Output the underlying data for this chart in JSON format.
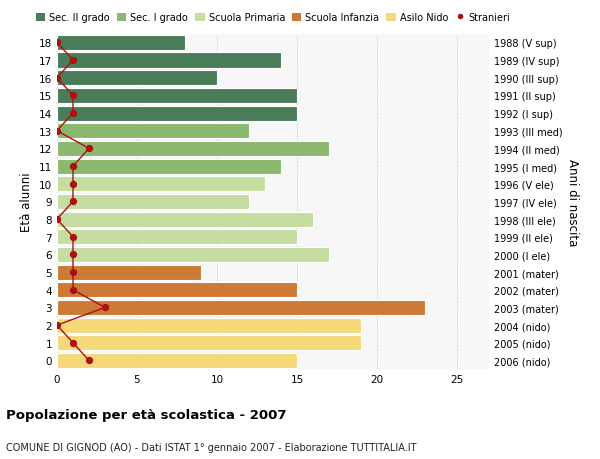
{
  "ages": [
    18,
    17,
    16,
    15,
    14,
    13,
    12,
    11,
    10,
    9,
    8,
    7,
    6,
    5,
    4,
    3,
    2,
    1,
    0
  ],
  "right_labels": [
    "1988 (V sup)",
    "1989 (IV sup)",
    "1990 (III sup)",
    "1991 (II sup)",
    "1992 (I sup)",
    "1993 (III med)",
    "1994 (II med)",
    "1995 (I med)",
    "1996 (V ele)",
    "1997 (IV ele)",
    "1998 (III ele)",
    "1999 (II ele)",
    "2000 (I ele)",
    "2001 (mater)",
    "2002 (mater)",
    "2003 (mater)",
    "2004 (nido)",
    "2005 (nido)",
    "2006 (nido)"
  ],
  "bar_values": [
    8,
    14,
    10,
    15,
    15,
    12,
    17,
    14,
    13,
    12,
    16,
    15,
    17,
    9,
    15,
    23,
    19,
    19,
    15
  ],
  "bar_colors": [
    "#4a7c59",
    "#4a7c59",
    "#4a7c59",
    "#4a7c59",
    "#4a7c59",
    "#8ab86e",
    "#8ab86e",
    "#8ab86e",
    "#c5dda0",
    "#c5dda0",
    "#c5dda0",
    "#c5dda0",
    "#c5dda0",
    "#cc7a35",
    "#cc7a35",
    "#cc7a35",
    "#f5d87a",
    "#f5d87a",
    "#f5d87a"
  ],
  "stranieri_values": [
    0,
    1,
    0,
    1,
    1,
    0,
    2,
    1,
    1,
    1,
    0,
    1,
    1,
    1,
    1,
    3,
    0,
    1,
    2
  ],
  "legend_labels": [
    "Sec. II grado",
    "Sec. I grado",
    "Scuola Primaria",
    "Scuola Infanzia",
    "Asilo Nido",
    "Stranieri"
  ],
  "legend_colors": [
    "#4a7c59",
    "#8ab86e",
    "#c5dda0",
    "#cc7a35",
    "#f5d87a",
    "#aa1111"
  ],
  "ylabel": "Età alunni",
  "right_ylabel": "Anni di nascita",
  "title": "Popolazione per età scolastica - 2007",
  "subtitle": "COMUNE DI GIGNOD (AO) - Dati ISTAT 1° gennaio 2007 - Elaborazione TUTTITALIA.IT",
  "xlim": [
    0,
    27
  ],
  "ylim": [
    -0.5,
    18.5
  ],
  "bg_color": "#ffffff",
  "plot_bg_color": "#f7f7f7",
  "bar_edge_color": "#ffffff",
  "grid_color": "#cccccc"
}
